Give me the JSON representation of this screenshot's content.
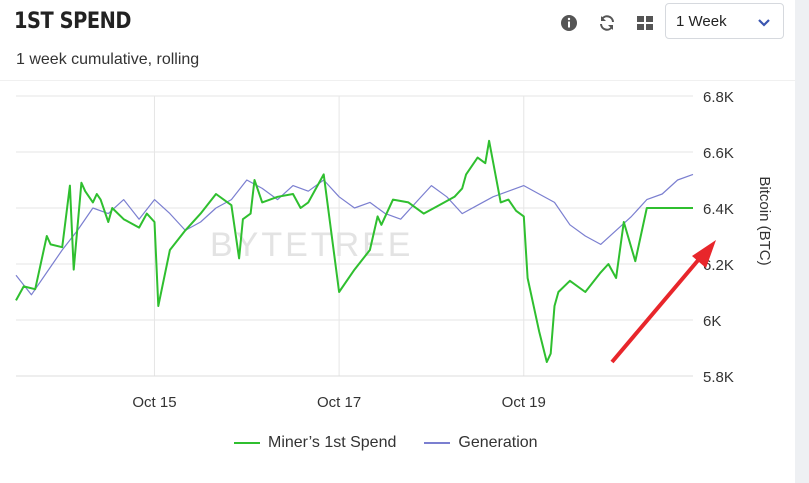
{
  "header": {
    "title": "1ST SPEND",
    "subtitle": "1 week cumulative, rolling",
    "info_icon": "info-icon",
    "refresh_icon": "refresh-icon",
    "grid_icon": "grid-icon",
    "range_select": {
      "value": "1 Week",
      "chevron_icon": "chevron-down-icon"
    }
  },
  "watermark": "BYTETREE",
  "colors": {
    "miners_spend": "#2fbf2f",
    "generation": "#7b7fd0",
    "arrow": "#e8262b",
    "grid": "#e6e6e6"
  },
  "chart_data": {
    "type": "line",
    "ylabel": "Bitcoin (BTC)",
    "ylim": [
      5800,
      6800
    ],
    "yticks": [
      5800,
      6000,
      6200,
      6400,
      6600,
      6800
    ],
    "ytick_labels": [
      "5.8K",
      "6K",
      "6.2K",
      "6.4K",
      "6.6K",
      "6.8K"
    ],
    "x_range": [
      "2018-10-13T12:00",
      "2018-10-20T20:00"
    ],
    "xticks": [
      {
        "x": "2018-10-15",
        "label": "Oct 15"
      },
      {
        "x": "2018-10-17",
        "label": "Oct 17"
      },
      {
        "x": "2018-10-19",
        "label": "Oct 19"
      }
    ],
    "grid": true,
    "legend": "bottom",
    "series": [
      {
        "name": "Miner’s 1st Spend",
        "x": [
          "2018-10-13T12:00",
          "2018-10-13T14:00",
          "2018-10-13T17:00",
          "2018-10-13T20:00",
          "2018-10-13T21:00",
          "2018-10-14T00:00",
          "2018-10-14T02:00",
          "2018-10-14T03:00",
          "2018-10-14T05:00",
          "2018-10-14T06:00",
          "2018-10-14T08:00",
          "2018-10-14T09:00",
          "2018-10-14T10:00",
          "2018-10-14T12:00",
          "2018-10-14T13:00",
          "2018-10-14T16:00",
          "2018-10-14T20:00",
          "2018-10-14T22:00",
          "2018-10-15T00:00",
          "2018-10-15T01:00",
          "2018-10-15T04:00",
          "2018-10-15T08:00",
          "2018-10-15T12:00",
          "2018-10-15T16:00",
          "2018-10-15T20:00",
          "2018-10-15T22:00",
          "2018-10-15T23:00",
          "2018-10-16T01:00",
          "2018-10-16T02:00",
          "2018-10-16T04:00",
          "2018-10-16T08:00",
          "2018-10-16T12:00",
          "2018-10-16T14:00",
          "2018-10-16T16:00",
          "2018-10-16T20:00",
          "2018-10-17T00:00",
          "2018-10-17T04:00",
          "2018-10-17T08:00",
          "2018-10-17T10:00",
          "2018-10-17T11:00",
          "2018-10-17T14:00",
          "2018-10-17T18:00",
          "2018-10-17T22:00",
          "2018-10-18T02:00",
          "2018-10-18T06:00",
          "2018-10-18T08:00",
          "2018-10-18T09:00",
          "2018-10-18T12:00",
          "2018-10-18T14:00",
          "2018-10-18T15:00",
          "2018-10-18T18:00",
          "2018-10-18T20:00",
          "2018-10-18T22:00",
          "2018-10-19T00:00",
          "2018-10-19T01:00",
          "2018-10-19T04:00",
          "2018-10-19T06:00",
          "2018-10-19T07:00",
          "2018-10-19T08:00",
          "2018-10-19T09:00",
          "2018-10-19T12:00",
          "2018-10-19T16:00",
          "2018-10-19T20:00",
          "2018-10-19T22:00",
          "2018-10-20T00:00",
          "2018-10-20T02:00",
          "2018-10-20T05:00",
          "2018-10-20T08:00",
          "2018-10-20T10:00",
          "2018-10-20T12:00",
          "2018-10-20T14:00",
          "2018-10-20T15:00",
          "2018-10-20T16:00",
          "2018-10-20T17:00",
          "2018-10-20T18:00",
          "2018-10-20T19:00",
          "2018-10-20T20:00"
        ],
        "values": [
          6070,
          6120,
          6110,
          6300,
          6270,
          6260,
          6480,
          6180,
          6490,
          6460,
          6420,
          6450,
          6430,
          6350,
          6400,
          6360,
          6330,
          6380,
          6350,
          6050,
          6250,
          6320,
          6380,
          6450,
          6410,
          6220,
          6360,
          6380,
          6500,
          6420,
          6440,
          6450,
          6400,
          6420,
          6520,
          6100,
          6180,
          6250,
          6370,
          6340,
          6430,
          6420,
          6380,
          6410,
          6440,
          6470,
          6520,
          6580,
          6560,
          6640,
          6420,
          6430,
          6390,
          6370,
          6150,
          5960,
          5850,
          5880,
          6050,
          6100,
          6140,
          6100,
          6170,
          6200,
          6150,
          6350,
          6210,
          6400,
          6400,
          6400,
          6400,
          6400,
          6400,
          6400,
          6400,
          6400,
          6400
        ]
      },
      {
        "name": "Generation",
        "x": [
          "2018-10-13T12:00",
          "2018-10-13T16:00",
          "2018-10-13T20:00",
          "2018-10-14T00:00",
          "2018-10-14T04:00",
          "2018-10-14T08:00",
          "2018-10-14T12:00",
          "2018-10-14T16:00",
          "2018-10-14T20:00",
          "2018-10-15T00:00",
          "2018-10-15T04:00",
          "2018-10-15T08:00",
          "2018-10-15T12:00",
          "2018-10-15T16:00",
          "2018-10-15T20:00",
          "2018-10-16T00:00",
          "2018-10-16T04:00",
          "2018-10-16T08:00",
          "2018-10-16T12:00",
          "2018-10-16T16:00",
          "2018-10-16T20:00",
          "2018-10-17T00:00",
          "2018-10-17T04:00",
          "2018-10-17T08:00",
          "2018-10-17T12:00",
          "2018-10-17T16:00",
          "2018-10-17T20:00",
          "2018-10-18T00:00",
          "2018-10-18T04:00",
          "2018-10-18T08:00",
          "2018-10-18T12:00",
          "2018-10-18T16:00",
          "2018-10-18T20:00",
          "2018-10-19T00:00",
          "2018-10-19T04:00",
          "2018-10-19T08:00",
          "2018-10-19T12:00",
          "2018-10-19T16:00",
          "2018-10-19T20:00",
          "2018-10-20T00:00",
          "2018-10-20T04:00",
          "2018-10-20T08:00",
          "2018-10-20T12:00",
          "2018-10-20T16:00",
          "2018-10-20T20:00"
        ],
        "values": [
          6160,
          6090,
          6170,
          6250,
          6320,
          6400,
          6380,
          6430,
          6360,
          6430,
          6380,
          6320,
          6350,
          6400,
          6430,
          6500,
          6470,
          6430,
          6480,
          6460,
          6500,
          6440,
          6400,
          6420,
          6380,
          6360,
          6420,
          6480,
          6440,
          6380,
          6410,
          6440,
          6460,
          6480,
          6450,
          6420,
          6340,
          6300,
          6270,
          6320,
          6370,
          6430,
          6450,
          6500,
          6520
        ]
      }
    ]
  }
}
